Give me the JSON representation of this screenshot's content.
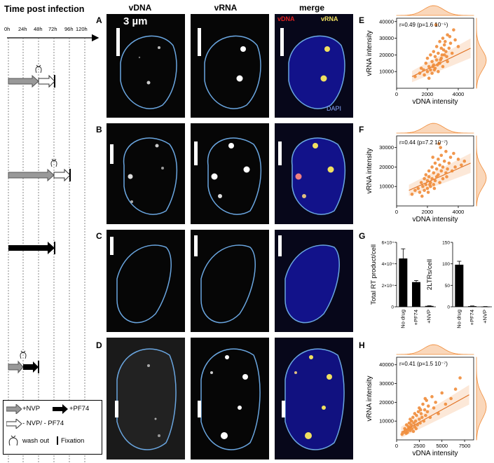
{
  "timeline": {
    "title": "Time post infection",
    "ticks": [
      "0h",
      "24h",
      "48h",
      "72h",
      "96h",
      "120h"
    ]
  },
  "columns": [
    "vDNA",
    "vRNA",
    "merge"
  ],
  "panel_letters": [
    "A",
    "B",
    "C",
    "D",
    "E",
    "F",
    "G",
    "H"
  ],
  "scale_bar": "3 µm",
  "merge_labels": {
    "vdna": "vDNA",
    "vrna": "vRNA",
    "dapi": "DAPI"
  },
  "legend": {
    "nvp": "+NVP",
    "pf74": "+PF74",
    "none": "- NVP/ - PF74",
    "washout": "wash out",
    "fixation": "Fixation"
  },
  "colors": {
    "nucleus_outline": "#6aa6e0",
    "scatter": "#f08c3a",
    "dapi": "#1a1ad6",
    "vdna_red": "#e02020",
    "vrna_yellow": "#f0e060"
  },
  "chart_data": [
    {
      "panel": "E",
      "type": "scatter",
      "annotation": "r=0.49 (p=1.6 10⁻⁵)",
      "xlabel": "vDNA intensity",
      "ylabel": "vRNA intensity",
      "xticks": [
        "0",
        "2000",
        "4000"
      ],
      "yticks": [
        "10000",
        "20000",
        "30000",
        "40000"
      ],
      "xlim": [
        0,
        5000
      ],
      "ylim": [
        0,
        42000
      ],
      "trend": [
        [
          1000,
          7000
        ],
        [
          4800,
          24000
        ]
      ],
      "x": [
        1200,
        1500,
        1600,
        1800,
        1900,
        2000,
        2000,
        2100,
        2200,
        2200,
        2300,
        2300,
        2400,
        2400,
        2500,
        2500,
        2600,
        2600,
        2700,
        2700,
        2800,
        2800,
        2900,
        2900,
        3000,
        3000,
        3100,
        3100,
        3200,
        3300,
        3300,
        3400,
        3500,
        3600,
        3700,
        3800,
        4000,
        2100,
        2450,
        2650,
        2850,
        3050,
        3250,
        1750,
        2350,
        2950,
        3150,
        3450,
        2550,
        2750
      ],
      "y": [
        7000,
        9000,
        12000,
        8000,
        15000,
        10000,
        18000,
        13000,
        11000,
        20000,
        9000,
        16000,
        14000,
        22000,
        12000,
        19000,
        17000,
        25000,
        10000,
        21000,
        15000,
        28000,
        18000,
        24000,
        13000,
        30000,
        20000,
        26000,
        22000,
        16000,
        32000,
        24000,
        27000,
        21000,
        35000,
        29000,
        25000,
        6000,
        11000,
        14000,
        17000,
        23000,
        19000,
        11000,
        13000,
        20000,
        28000,
        31000,
        38000,
        15000
      ]
    },
    {
      "panel": "F",
      "type": "scatter",
      "annotation": "r=0.44 (p=7.2 10⁻⁷)",
      "xlabel": "vDNA intensity",
      "ylabel": "vRNA intensity",
      "xticks": [
        "0",
        "2000",
        "4000"
      ],
      "yticks": [
        "10000",
        "20000",
        "30000"
      ],
      "xlim": [
        0,
        5000
      ],
      "ylim": [
        0,
        36000
      ],
      "trend": [
        [
          800,
          8000
        ],
        [
          4800,
          22000
        ]
      ],
      "x": [
        1000,
        1200,
        1400,
        1500,
        1600,
        1700,
        1800,
        1800,
        1900,
        1900,
        2000,
        2000,
        2100,
        2100,
        2200,
        2200,
        2300,
        2300,
        2400,
        2400,
        2500,
        2500,
        2600,
        2600,
        2700,
        2700,
        2800,
        2800,
        2900,
        2900,
        3000,
        3000,
        3100,
        3200,
        3200,
        3300,
        3400,
        3500,
        3600,
        3700,
        3800,
        4000,
        4200,
        4400,
        1650,
        2050,
        2450,
        2850,
        3250,
        2150,
        2350,
        2750
      ],
      "y": [
        6000,
        8000,
        9000,
        7000,
        12000,
        10000,
        8000,
        14000,
        11000,
        16000,
        9000,
        13000,
        15000,
        18000,
        10000,
        12000,
        14000,
        20000,
        11000,
        17000,
        13000,
        22000,
        15000,
        19000,
        16000,
        24000,
        12000,
        21000,
        18000,
        26000,
        14000,
        20000,
        23000,
        17000,
        28000,
        19000,
        22000,
        25000,
        18000,
        27000,
        20000,
        24000,
        21000,
        23000,
        5000,
        7000,
        9000,
        30000,
        15000,
        11000,
        25000,
        32000
      ]
    },
    {
      "panel": "G-left",
      "type": "bar",
      "ylabel": "Total RT product/cell",
      "categories": [
        "No drug",
        "+PF74",
        "+NVP"
      ],
      "values": [
        45000,
        23000,
        800
      ],
      "errors": [
        9000,
        1500,
        200
      ],
      "yticks": [
        "0",
        "2×10⁴",
        "4×10⁴",
        "6×10⁴"
      ],
      "ylim": [
        0,
        60000
      ]
    },
    {
      "panel": "G-right",
      "type": "bar",
      "ylabel": "2LTRs/cell",
      "categories": [
        "No drug",
        "+PF74",
        "+NVP"
      ],
      "values": [
        98,
        1.5,
        0.5
      ],
      "errors": [
        8,
        0.5,
        0.2
      ],
      "yticks": [
        "0",
        "50",
        "100",
        "150"
      ],
      "ylim": [
        0,
        150
      ]
    },
    {
      "panel": "H",
      "type": "scatter",
      "annotation": "r=0.41 (p=1.5 10⁻⁷)",
      "xlabel": "vDNA intensity",
      "ylabel": "vRNA intensity",
      "xticks": [
        "0",
        "2500",
        "5000",
        "7500"
      ],
      "yticks": [
        "10000",
        "20000",
        "30000",
        "40000"
      ],
      "xlim": [
        0,
        8500
      ],
      "ylim": [
        0,
        44000
      ],
      "trend": [
        [
          500,
          4000
        ],
        [
          8000,
          24000
        ]
      ],
      "x": [
        600,
        800,
        900,
        1000,
        1100,
        1200,
        1300,
        1400,
        1500,
        1500,
        1600,
        1700,
        1800,
        1900,
        2000,
        2000,
        2100,
        2200,
        2300,
        2400,
        2500,
        2500,
        2600,
        2700,
        2800,
        2900,
        3000,
        3100,
        3200,
        3300,
        3400,
        3500,
        3700,
        3900,
        4100,
        4300,
        4600,
        5000,
        5400,
        6000,
        6500,
        7000,
        1250,
        1650,
        2150,
        2650,
        3150,
        1050,
        1450,
        1850
      ],
      "y": [
        3000,
        4000,
        6000,
        5000,
        8000,
        4000,
        7000,
        9000,
        5000,
        11000,
        8000,
        6000,
        12000,
        9000,
        7000,
        14000,
        10000,
        13000,
        8000,
        15000,
        11000,
        17000,
        9000,
        14000,
        12000,
        19000,
        10000,
        16000,
        13000,
        21000,
        15000,
        18000,
        12000,
        23000,
        17000,
        20000,
        14000,
        25000,
        19000,
        22000,
        27000,
        33000,
        5500,
        10000,
        6000,
        16000,
        22000,
        3500,
        6500,
        4500
      ]
    }
  ]
}
